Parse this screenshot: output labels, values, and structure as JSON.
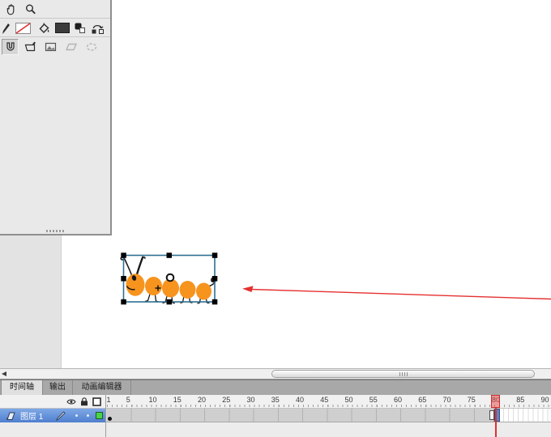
{
  "tools_panel": {
    "row1_icons": [
      "hand-tool-icon",
      "zoom-tool-icon"
    ],
    "row2_icons": [
      "stroke-pencil-icon",
      "no-color-swatch",
      "fill-bucket-icon",
      "fill-color-swatch",
      "black-white-swatch-icon",
      "swap-colors-icon"
    ],
    "row3_icons": [
      "snap-magnet-icon",
      "edit-object-icon",
      "image-icon",
      "disabled-shape-icon",
      "disabled-ellipse-icon"
    ],
    "fill_swatch_color": "#3c3c3c"
  },
  "canvas": {
    "artwork": {
      "name": "caterpillar-drawing",
      "body_color": "#F7941E",
      "line_color": "#1a1a1a"
    },
    "selection": {
      "outline_color": "#2E6F93",
      "handle_color": "#000000"
    },
    "arrow_color": "#E53030"
  },
  "timeline": {
    "tabs": [
      {
        "label": "时间轴",
        "active": true
      },
      {
        "label": "输出",
        "active": false
      },
      {
        "label": "动画编辑器",
        "active": false
      }
    ],
    "header_icons": [
      "eye-icon",
      "lock-icon",
      "outline-box-icon"
    ],
    "ruler": {
      "labels": [
        1,
        5,
        10,
        15,
        20,
        25,
        30,
        35,
        40,
        45,
        50,
        55,
        60,
        65,
        70,
        75,
        80,
        85,
        90
      ]
    },
    "layers": [
      {
        "name": "图层 1",
        "selected": true,
        "outline_color": "#4AD34A",
        "keyframe_frame": 1,
        "span_end_frame": 79,
        "selected_frame": 80
      }
    ],
    "playhead_frame": 80
  }
}
